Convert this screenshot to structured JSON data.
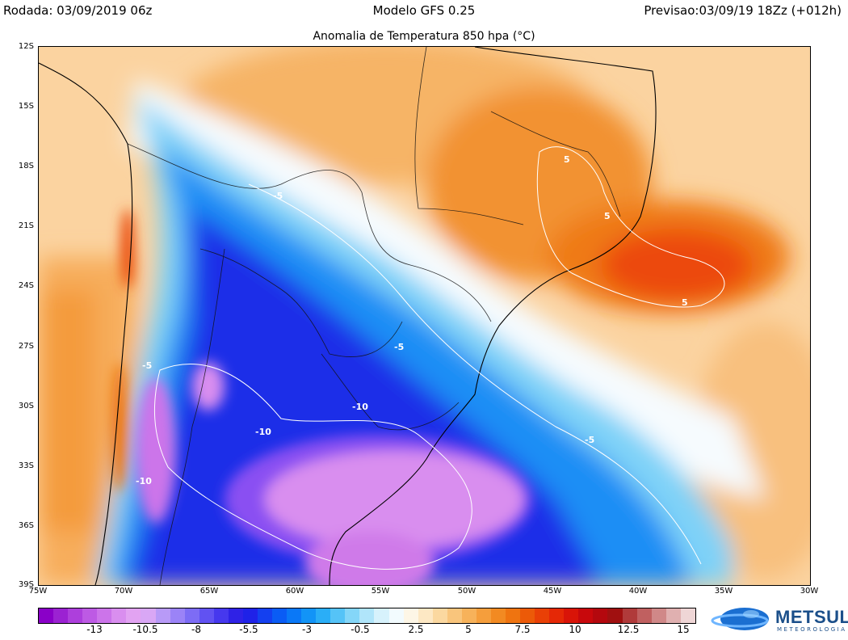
{
  "header": {
    "run": "Rodada: 03/09/2019 06z",
    "model": "Modelo GFS 0.25",
    "forecast": "Previsao:03/09/19 18Zz (+012h)"
  },
  "map": {
    "title": "Anomalia de Temperatura 850 hpa (°C)",
    "lat_labels": [
      "12S",
      "15S",
      "18S",
      "21S",
      "24S",
      "27S",
      "30S",
      "33S",
      "36S",
      "39S"
    ],
    "lon_labels": [
      "75W",
      "70W",
      "65W",
      "60W",
      "55W",
      "50W",
      "45W",
      "40W",
      "35W",
      "30W"
    ],
    "contour_labels": [
      "5",
      "5",
      "5",
      "-5",
      "-5",
      "-5",
      "-5",
      "-10",
      "-10",
      "-10"
    ]
  },
  "colorbar": {
    "colors": [
      "#8a00c8",
      "#9b22d2",
      "#ad3fdc",
      "#bd5ae4",
      "#cc74ea",
      "#d98eef",
      "#e2a3f2",
      "#d9a7f5",
      "#b89af7",
      "#9b83f7",
      "#7d6cf5",
      "#6152f2",
      "#4638ee",
      "#2f22e6",
      "#1f22e8",
      "#1440f0",
      "#0a5cf5",
      "#0a78f7",
      "#1294f7",
      "#2aaef7",
      "#55c3f7",
      "#84d6f8",
      "#b0e5fa",
      "#d7f2fc",
      "#f2fbfe",
      "#fdf6e6",
      "#fde8c4",
      "#fbd8a0",
      "#f9c57c",
      "#f7b25a",
      "#f59e3c",
      "#f28a22",
      "#ef7410",
      "#ec5a08",
      "#e94006",
      "#e52806",
      "#d91408",
      "#c8080c",
      "#b4080e",
      "#a01010",
      "#b03a3a",
      "#c06060",
      "#d08888",
      "#e0b0b0",
      "#efd6d6"
    ],
    "labels": [
      "-13",
      "-10.5",
      "-8",
      "-5.5",
      "-3",
      "-0.5",
      "2.5",
      "5",
      "7.5",
      "10",
      "12.5",
      "15"
    ]
  },
  "logo": {
    "name": "METSUL",
    "subtitle": "METEOROLOGIA"
  }
}
